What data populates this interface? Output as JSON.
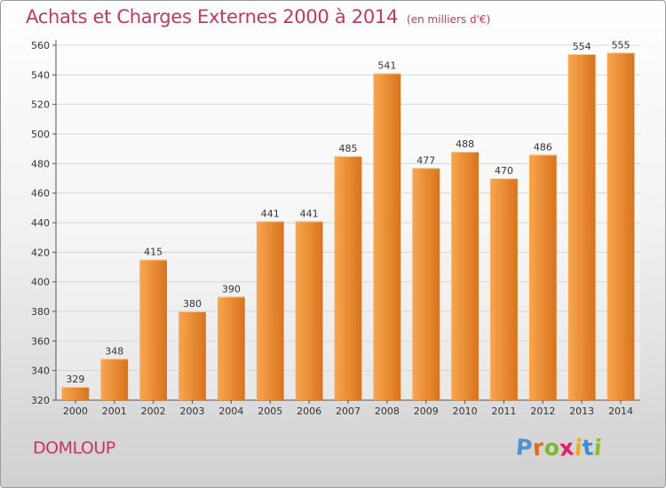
{
  "header": {
    "title": "Achats et Charges Externes 2000 à 2014",
    "subtitle": "(en milliers d'€)"
  },
  "footer": {
    "place": "DOMLOUP",
    "brand": [
      "P",
      "r",
      "o",
      "x",
      "i",
      "t",
      "i"
    ]
  },
  "colors": {
    "title": "#c8365f",
    "bar_light": "#f9a64f",
    "bar_dark": "#d9731d",
    "grid": "#d6d6d6",
    "brand": [
      "#4d92d6",
      "#e06b1b",
      "#79b830",
      "#e31f6b",
      "#f2a90f",
      "#3a8fd1",
      "#8fbf1f"
    ]
  },
  "chart_data": {
    "type": "bar",
    "title": "Achats et Charges Externes 2000 à 2014",
    "subtitle": "(en milliers d'€)",
    "categories": [
      "2000",
      "2001",
      "2002",
      "2003",
      "2004",
      "2005",
      "2006",
      "2007",
      "2008",
      "2009",
      "2010",
      "2011",
      "2012",
      "2013",
      "2014"
    ],
    "values": [
      329,
      348,
      415,
      380,
      390,
      441,
      441,
      485,
      541,
      477,
      488,
      470,
      486,
      554,
      555
    ],
    "ylim": [
      320,
      560
    ],
    "yticks": [
      320,
      340,
      360,
      380,
      400,
      420,
      440,
      460,
      480,
      500,
      520,
      540,
      560
    ],
    "grid": true,
    "data_labels": true
  }
}
